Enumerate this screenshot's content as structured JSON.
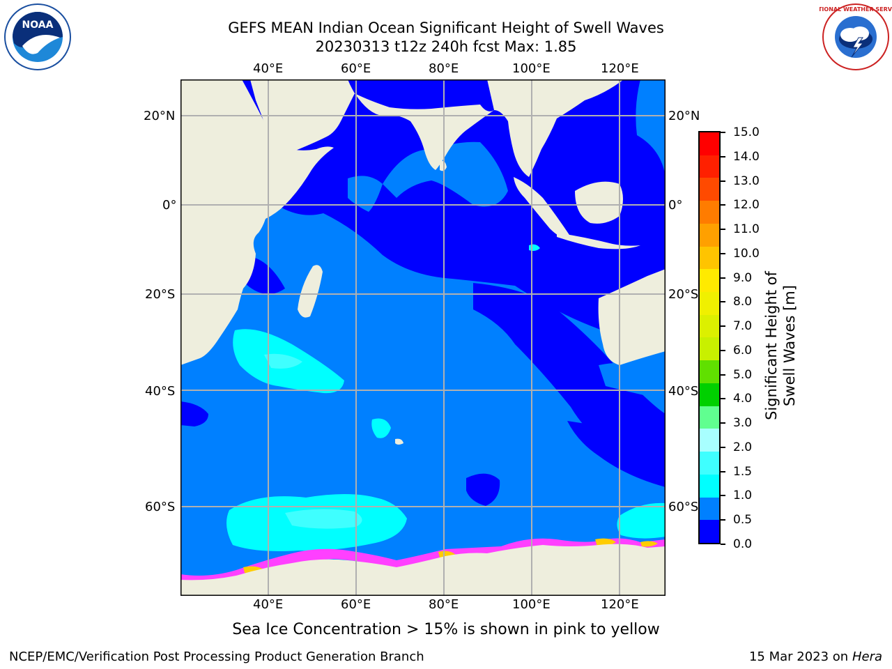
{
  "header": {
    "title_line1": "GEFS MEAN Indian Ocean Significant Height of Swell Waves",
    "title_line2": "20230313 t12z 240h fcst   Max: 1.85"
  },
  "logos": {
    "left_text": "NOAA",
    "right_text": "NATIONAL WEATHER SERVICE"
  },
  "map": {
    "lon_labels": [
      "40°E",
      "60°E",
      "80°E",
      "100°E",
      "120°E"
    ],
    "lat_labels": [
      "20°N",
      "0°",
      "20°S",
      "40°S",
      "60°S"
    ],
    "colors": {
      "land": "#eeeedd",
      "grid": "#b0b0b0",
      "band_0_05": "#0000ff",
      "band_05_10": "#0080ff",
      "band_10_15": "#00ffff",
      "band_15_20": "#3fffff",
      "ice_pink": "#ff40ff",
      "ice_yellow": "#ffcc00"
    }
  },
  "colorbar": {
    "label": "Significant Height of Swell Waves [m]",
    "tick_labels": [
      "15.0",
      "14.0",
      "13.0",
      "12.0",
      "11.0",
      "10.0",
      "9.0",
      "8.0",
      "7.0",
      "6.0",
      "5.0",
      "4.0",
      "3.0",
      "2.0",
      "1.5",
      "1.0",
      "0.5",
      "0.0"
    ],
    "colors_top_to_bottom": [
      "#ff0000",
      "#ff2000",
      "#ff4a00",
      "#ff7c00",
      "#ffa000",
      "#ffc400",
      "#ffea00",
      "#f0f000",
      "#dcf000",
      "#c8f000",
      "#60e000",
      "#00d000",
      "#60ff90",
      "#a8ffff",
      "#3fffff",
      "#00ffff",
      "#0080ff",
      "#0000ff"
    ]
  },
  "caption": "Sea Ice Concentration > 15% is shown in pink to yellow",
  "footer": {
    "left": "NCEP/EMC/Verification Post Processing Product Generation Branch",
    "date": "15 Mar 2023",
    "on": "on",
    "machine": "Hera"
  }
}
